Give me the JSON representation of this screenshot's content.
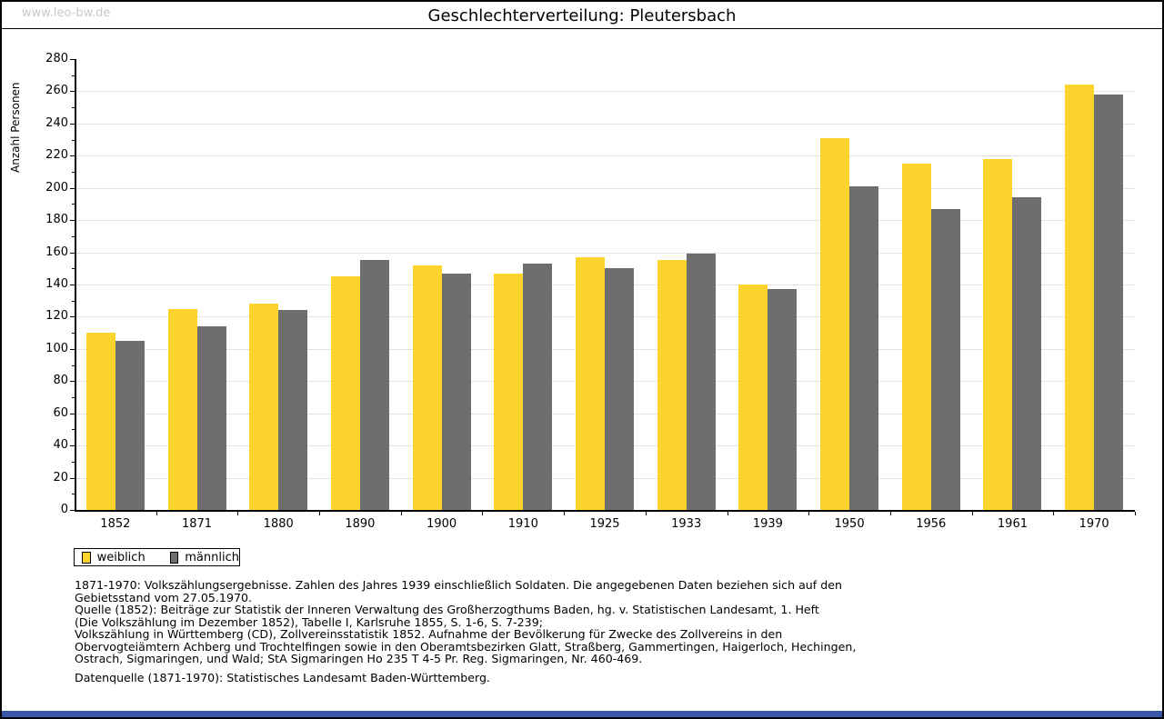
{
  "page": {
    "watermark": "www.leo-bw.de",
    "footnote_lines": [
      "1871-1970: Volkszählungsergebnisse. Zahlen des Jahres 1939 einschließlich Soldaten. Die angegebenen Daten beziehen sich auf den",
      "Gebietsstand vom 27.05.1970.",
      "Quelle (1852): Beiträge zur Statistik der Inneren Verwaltung des Großherzogthums Baden, hg. v. Statistischen Landesamt, 1. Heft",
      "(Die Volkszählung im Dezember 1852), Tabelle I, Karlsruhe 1855, S. 1-6, S. 7-239;",
      "Volkszählung in Württemberg (CD), Zollvereinsstatistik 1852. Aufnahme der Bevölkerung für Zwecke des Zollvereins in den",
      "Obervogteiämtern Achberg und Trochtelfingen sowie in den Oberamtsbezirken Glatt, Straßberg, Gammertingen, Haigerloch, Hechingen,",
      "Ostrach, Sigmaringen, und Wald; StA Sigmaringen Ho 235 T 4-5 Pr. Reg. Sigmaringen, Nr. 460-469."
    ],
    "datasource": "Datenquelle (1871-1970): Statistisches Landesamt Baden-Württemberg.",
    "colors": {
      "female_yellow": "#fcd42d",
      "male_gray": "#6e6e6e",
      "gridline": "#e2e2e2",
      "frame": "#000000",
      "watermark_gray": "#c9c9c9",
      "bottom_bar_blue": "#3b58a8"
    }
  },
  "chart_data": {
    "type": "bar",
    "title": "Geschlechterverteilung: Pleutersbach",
    "ylabel": "Anzahl Personen",
    "xlabel": "",
    "ylim": [
      0,
      280
    ],
    "ytick_step": 20,
    "yminor_step": 10,
    "grid": true,
    "legend_position": "bottom-left",
    "categories": [
      "1852",
      "1871",
      "1880",
      "1890",
      "1900",
      "1910",
      "1925",
      "1933",
      "1939",
      "1950",
      "1956",
      "1961",
      "1970"
    ],
    "series": [
      {
        "name": "weiblich",
        "color": "#fcd42d",
        "values": [
          110,
          125,
          128,
          145,
          152,
          147,
          157,
          155,
          140,
          231,
          215,
          218,
          264
        ]
      },
      {
        "name": "männlich",
        "color": "#6e6e6e",
        "values": [
          105,
          114,
          124,
          155,
          147,
          153,
          150,
          159,
          137,
          201,
          187,
          194,
          258
        ]
      }
    ]
  }
}
